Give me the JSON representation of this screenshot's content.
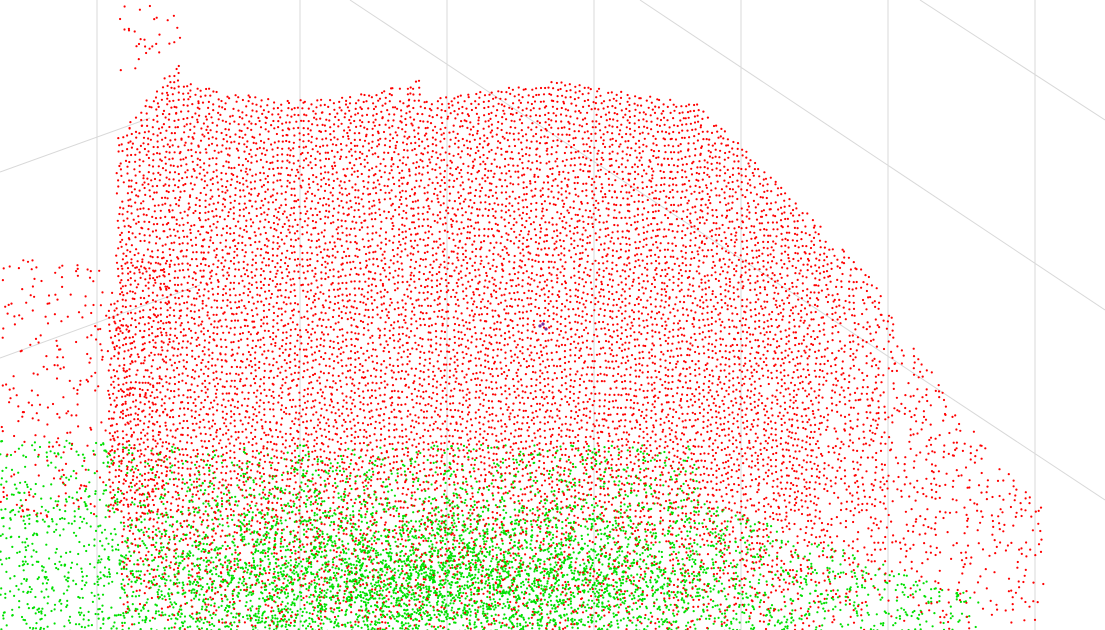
{
  "scene": {
    "background": "#ffffff",
    "grid_color": "#d8d8d8",
    "clusters": [
      {
        "color": "#ff0000"
      },
      {
        "color": "#00e000"
      }
    ],
    "marker_color": "#7a2a9a"
  }
}
